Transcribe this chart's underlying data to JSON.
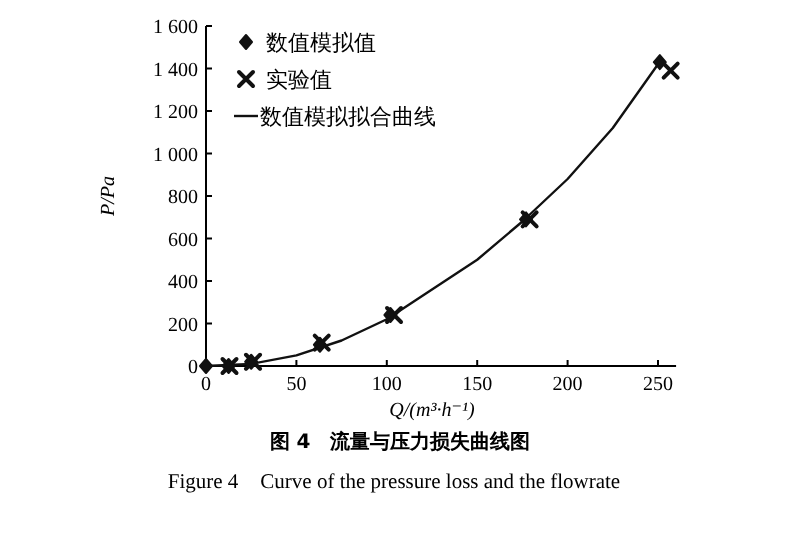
{
  "chart_data": {
    "type": "line",
    "title": "图 4　流量与压力损失曲线图",
    "subtitle": "Figure 4　Curve of the pressure loss and the flowrate",
    "xlabel": "Q/(m³·h⁻¹)",
    "ylabel": "P/Pa",
    "xlim": [
      0,
      260
    ],
    "ylim": [
      0,
      1600
    ],
    "xticks": [
      0,
      50,
      100,
      150,
      200,
      250
    ],
    "yticks": [
      0,
      200,
      400,
      600,
      800,
      {
        "value": 1000,
        "label": "1 000"
      },
      {
        "value": 1200,
        "label": "1 200"
      },
      {
        "value": 1400,
        "label": "1 400"
      },
      {
        "value": 1600,
        "label": "1 600"
      }
    ],
    "grid": false,
    "legend": "top left",
    "series": [
      {
        "name": "数值模拟值",
        "type": "scatter",
        "marker": "diamond",
        "color": "#111111",
        "x": [
          0,
          12.5,
          25,
          63,
          102,
          177,
          251
        ],
        "values": [
          0,
          0,
          20,
          100,
          240,
          690,
          1430
        ]
      },
      {
        "name": "实验值",
        "type": "scatter",
        "marker": "cross",
        "color": "#111111",
        "x": [
          13,
          26,
          64,
          104,
          179,
          257
        ],
        "values": [
          0,
          20,
          110,
          240,
          690,
          1390
        ]
      },
      {
        "name": "数值模拟拟合曲线",
        "marker": "none",
        "line_style": "solid",
        "color": "#111111",
        "x": [
          0,
          25,
          50,
          75,
          100,
          125,
          150,
          175,
          200,
          225,
          250
        ],
        "values": [
          0,
          10,
          50,
          120,
          220,
          360,
          500,
          680,
          880,
          1120,
          1420
        ]
      }
    ]
  }
}
